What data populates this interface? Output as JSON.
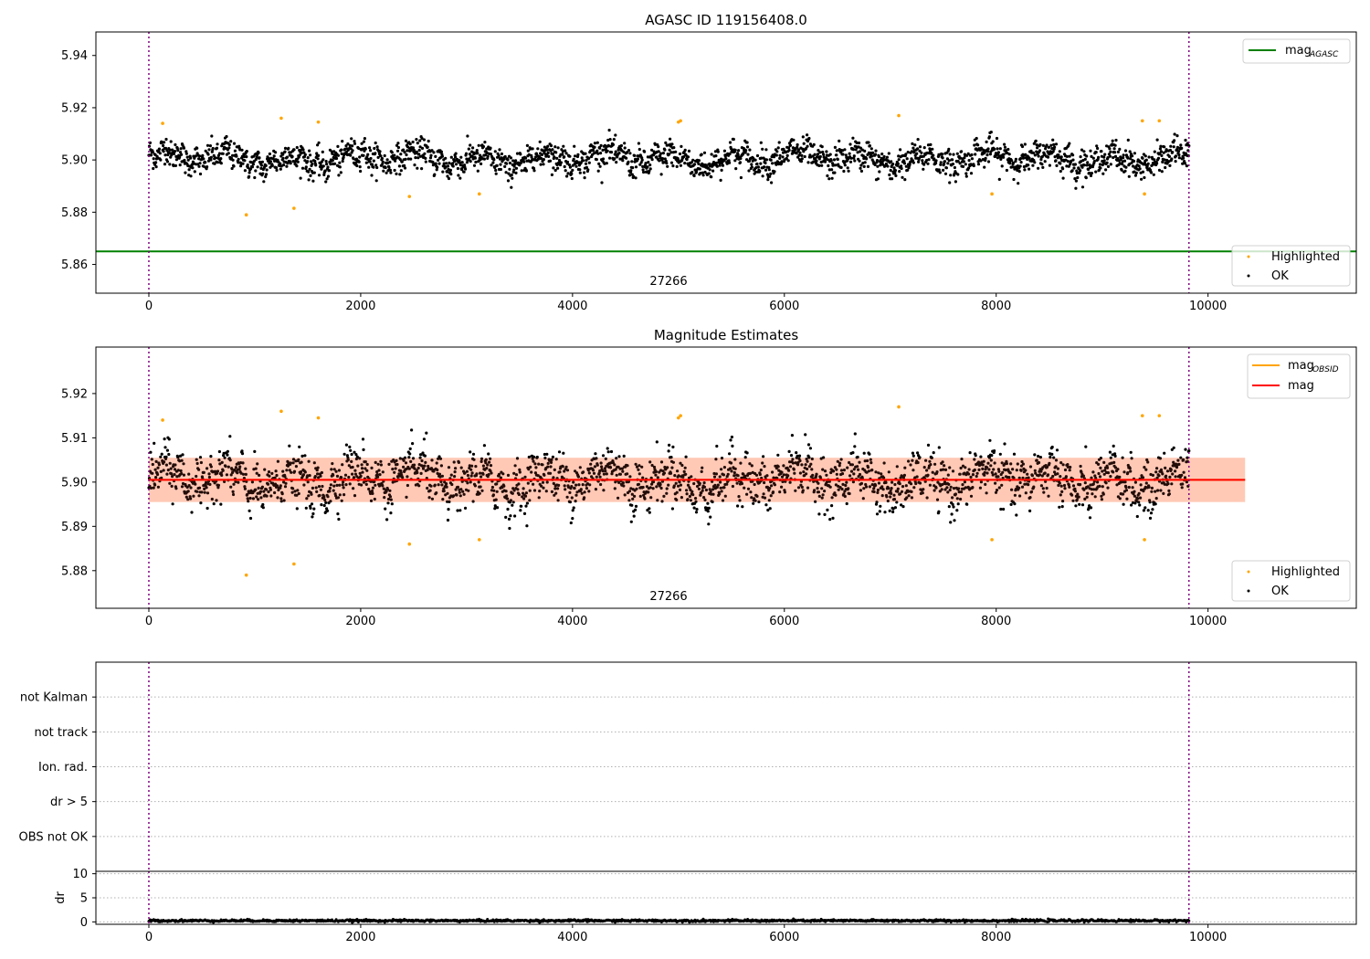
{
  "chart_data": [
    {
      "type": "scatter",
      "title": "AGASC ID 119156408.0",
      "xlim": [
        -500,
        11400
      ],
      "ylim": [
        5.849,
        5.949
      ],
      "xticks": [
        0,
        2000,
        4000,
        6000,
        8000,
        10000
      ],
      "yticks": [
        5.86,
        5.88,
        5.9,
        5.92,
        5.94
      ],
      "annotation": "27266",
      "vlines": [
        0,
        9820
      ],
      "series": [
        {
          "name": "mag",
          "sub": "AGASC",
          "kind": "line",
          "color": "#008000",
          "y": 5.865,
          "x": [
            -500,
            11400
          ]
        },
        {
          "name": "Highlighted",
          "kind": "scatter",
          "color": "#ffa500",
          "x": [
            130,
            920,
            1250,
            1370,
            1600,
            2460,
            3120,
            5000,
            5020,
            7080,
            7960,
            9380,
            9400,
            9540
          ],
          "y": [
            5.914,
            5.879,
            5.916,
            5.8815,
            5.9145,
            5.886,
            5.887,
            5.9145,
            5.915,
            5.917,
            5.887,
            5.915,
            5.887,
            5.915
          ]
        },
        {
          "name": "OK",
          "kind": "scatter",
          "color": "#000000",
          "x_range": [
            0,
            9820
          ],
          "mean": 5.9005,
          "amplitude": 0.0065,
          "n": 2400
        }
      ]
    },
    {
      "type": "scatter",
      "title": "Magnitude Estimates",
      "xlim": [
        -500,
        11400
      ],
      "ylim": [
        5.8715,
        5.9305
      ],
      "xticks": [
        0,
        2000,
        4000,
        6000,
        8000,
        10000
      ],
      "yticks": [
        5.88,
        5.89,
        5.9,
        5.91,
        5.92
      ],
      "annotation": "27266",
      "vlines": [
        0,
        9820
      ],
      "series": [
        {
          "name": "mag",
          "sub": "OBSID",
          "kind": "line",
          "color": "#ffa500",
          "y": 5.9005,
          "x": [
            0,
            10350
          ]
        },
        {
          "name": "mag",
          "kind": "line",
          "color": "#ff0000",
          "y": 5.9005,
          "x": [
            0,
            10350
          ],
          "band": [
            5.8955,
            5.9055
          ]
        },
        {
          "name": "Highlighted",
          "kind": "scatter",
          "color": "#ffa500",
          "x": [
            130,
            920,
            1250,
            1370,
            1600,
            2460,
            3120,
            5000,
            5020,
            7080,
            7960,
            9380,
            9400,
            9540
          ],
          "y": [
            5.914,
            5.879,
            5.916,
            5.8815,
            5.9145,
            5.886,
            5.887,
            5.9145,
            5.915,
            5.917,
            5.887,
            5.915,
            5.887,
            5.915
          ]
        },
        {
          "name": "OK",
          "kind": "scatter",
          "color": "#000000",
          "x_range": [
            0,
            9820
          ],
          "mean": 5.9005,
          "amplitude": 0.0065,
          "n": 2400
        }
      ]
    },
    {
      "type": "scatter",
      "title": "",
      "xlim": [
        -500,
        11400
      ],
      "ylim": [
        0,
        6
      ],
      "categories": [
        "OBS not OK",
        "dr > 5",
        "Ion. rad.",
        "not track",
        "not Kalman"
      ],
      "vlines": [
        0,
        9820
      ]
    },
    {
      "type": "scatter",
      "title": "",
      "ylabel": "dr",
      "xlim": [
        -500,
        11400
      ],
      "ylim": [
        -0.5,
        10.5
      ],
      "xticks": [
        0,
        2000,
        4000,
        6000,
        8000,
        10000
      ],
      "yticks": [
        0,
        5,
        10
      ],
      "vlines": [
        0,
        9820
      ],
      "series": [
        {
          "name": "dr",
          "kind": "scatter",
          "color": "#000000",
          "x_range": [
            0,
            9820
          ],
          "mean": 0.25,
          "amplitude": 0.15,
          "n": 1500
        }
      ]
    }
  ]
}
